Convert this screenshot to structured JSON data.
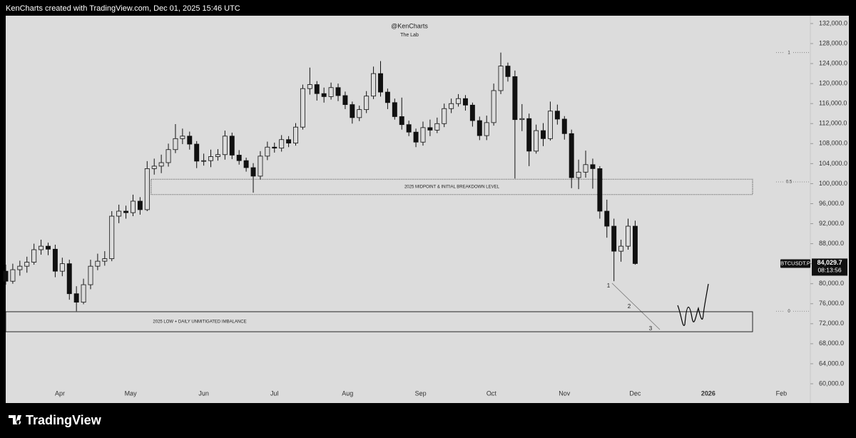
{
  "header": "KenCharts created with TradingView.com, Dec 01, 2025 15:46 UTC",
  "brand": "TradingView",
  "chart_data": {
    "type": "candlestick",
    "title": "@KenCharts",
    "subtitle": "The Lab",
    "up_color": "#111111",
    "down_color": "#111111",
    "xlim": [
      68,
      409
    ],
    "ylim": [
      58000,
      133570
    ],
    "xticks": [
      {
        "value": 91,
        "label": "Apr"
      },
      {
        "value": 121,
        "label": "May"
      },
      {
        "value": 152,
        "label": "Jun"
      },
      {
        "value": 182,
        "label": "Jul"
      },
      {
        "value": 213,
        "label": "Aug"
      },
      {
        "value": 244,
        "label": "Sep"
      },
      {
        "value": 274,
        "label": "Oct"
      },
      {
        "value": 305,
        "label": "Nov"
      },
      {
        "value": 335,
        "label": "Dec"
      },
      {
        "value": 366,
        "label": "2026"
      },
      {
        "value": 397,
        "label": "Feb"
      }
    ],
    "yticks": [
      {
        "value": 60000,
        "label": "60,000.0"
      },
      {
        "value": 64000,
        "label": "64,000.0"
      },
      {
        "value": 68000,
        "label": "68,000.0"
      },
      {
        "value": 72000,
        "label": "72,000.0"
      },
      {
        "value": 76000,
        "label": "76,000.0"
      },
      {
        "value": 80000,
        "label": "80,000.0"
      },
      {
        "value": 84000,
        "label": "84,000.0"
      },
      {
        "value": 88000,
        "label": "88,000.0"
      },
      {
        "value": 92000,
        "label": "92,000.0"
      },
      {
        "value": 96000,
        "label": "96,000.0"
      },
      {
        "value": 100000,
        "label": "100,000.0"
      },
      {
        "value": 104000,
        "label": "104,000.0"
      },
      {
        "value": 108000,
        "label": "108,000.0"
      },
      {
        "value": 112000,
        "label": "112,000.0"
      },
      {
        "value": 116000,
        "label": "116,000.0"
      },
      {
        "value": 120000,
        "label": "120,000.0"
      },
      {
        "value": 124000,
        "label": "124,000.0"
      },
      {
        "value": 128000,
        "label": "128,000.0"
      },
      {
        "value": 132000,
        "label": "132,000.0"
      }
    ],
    "x": [
      68,
      71,
      74,
      77,
      80,
      83,
      86,
      89,
      92,
      95,
      98,
      101,
      104,
      107,
      110,
      113,
      116,
      119,
      122,
      125,
      128,
      131,
      134,
      137,
      140,
      143,
      146,
      149,
      152,
      155,
      158,
      161,
      164,
      167,
      170,
      173,
      176,
      179,
      182,
      185,
      188,
      191,
      194,
      197,
      200,
      203,
      206,
      209,
      212,
      215,
      218,
      221,
      224,
      227,
      230,
      233,
      236,
      239,
      242,
      245,
      248,
      251,
      254,
      257,
      260,
      263,
      266,
      269,
      272,
      275,
      278,
      281,
      284,
      287,
      290,
      293,
      296,
      299,
      302,
      305,
      308,
      311,
      314,
      317,
      320,
      323,
      326,
      329,
      332,
      335
    ],
    "open": [
      82500,
      80500,
      82800,
      83500,
      84300,
      86800,
      87500,
      86900,
      82500,
      84000,
      78000,
      76300,
      79800,
      83500,
      84500,
      85000,
      93500,
      94500,
      94200,
      96500,
      94800,
      103000,
      103500,
      104200,
      106800,
      109000,
      109500,
      107900,
      104500,
      104600,
      105400,
      105800,
      109500,
      105700,
      104600,
      103200,
      101500,
      105500,
      107300,
      107100,
      108800,
      108100,
      111300,
      119000,
      119800,
      118000,
      117400,
      119200,
      117600,
      115800,
      113200,
      114800,
      117500,
      122000,
      118300,
      116200,
      113400,
      111800,
      110300,
      108300,
      111200,
      110700,
      112000,
      115000,
      116000,
      117000,
      115700,
      112600,
      109600,
      112200,
      118600,
      123500,
      121400,
      112800,
      113000,
      106500,
      110600,
      109000,
      114500,
      112900,
      110000,
      101200,
      102300,
      103800,
      103000,
      94500,
      91500,
      86500,
      87500,
      91500
    ],
    "high": [
      83800,
      84000,
      84600,
      85400,
      88000,
      88800,
      88200,
      87800,
      85200,
      84800,
      79500,
      81000,
      84800,
      86000,
      86500,
      94500,
      95800,
      95600,
      97800,
      97300,
      104500,
      105000,
      105800,
      108000,
      111900,
      111000,
      110400,
      108500,
      106000,
      106800,
      106900,
      110600,
      110200,
      106700,
      105200,
      104100,
      106500,
      108400,
      108200,
      109700,
      109500,
      112100,
      119800,
      123200,
      120500,
      119200,
      120200,
      120000,
      118400,
      116400,
      115600,
      118500,
      123400,
      124500,
      119000,
      117000,
      117200,
      112600,
      111000,
      112400,
      112800,
      113200,
      116000,
      117000,
      117900,
      117700,
      116200,
      113400,
      113600,
      120000,
      126200,
      124200,
      122600,
      115900,
      114000,
      111800,
      112100,
      116400,
      115800,
      113500,
      110800,
      104800,
      106600,
      105000,
      103500,
      96800,
      93000,
      88800,
      93000,
      92600
    ],
    "low": [
      79800,
      80000,
      81600,
      82200,
      83800,
      85800,
      85700,
      81300,
      81500,
      76800,
      74500,
      75900,
      78900,
      82700,
      83600,
      84500,
      92100,
      93000,
      93500,
      93800,
      94500,
      101800,
      102100,
      103400,
      106100,
      107900,
      106800,
      103100,
      103600,
      103300,
      104600,
      104800,
      104900,
      103800,
      102400,
      98200,
      100800,
      104700,
      106200,
      106400,
      107300,
      107600,
      110800,
      117800,
      116600,
      116200,
      116800,
      116500,
      114900,
      112000,
      112500,
      114100,
      116900,
      117400,
      114900,
      112800,
      110800,
      109500,
      107300,
      107600,
      109500,
      110100,
      111300,
      114100,
      115400,
      114600,
      111400,
      108700,
      108700,
      111600,
      117900,
      120400,
      101000,
      110500,
      103500,
      106000,
      107500,
      108600,
      111800,
      108800,
      99100,
      98900,
      101200,
      99000,
      93000,
      89200,
      80500,
      84400,
      86800,
      83800
    ],
    "close": [
      80500,
      82800,
      83500,
      84300,
      86800,
      87500,
      86900,
      82500,
      84000,
      78000,
      76300,
      79800,
      83500,
      84500,
      85000,
      93500,
      94500,
      94200,
      96500,
      94800,
      103000,
      103500,
      104200,
      106800,
      109000,
      109500,
      107900,
      104500,
      104600,
      105400,
      105800,
      109500,
      105700,
      104600,
      103200,
      101500,
      105500,
      107300,
      107100,
      108800,
      108100,
      111300,
      119000,
      119800,
      118000,
      117400,
      119200,
      117600,
      115800,
      113200,
      114800,
      117500,
      122000,
      118300,
      116200,
      113400,
      111800,
      110300,
      108300,
      111200,
      110700,
      112000,
      115000,
      116000,
      117000,
      115700,
      112600,
      109600,
      112200,
      118600,
      123500,
      121400,
      112800,
      113000,
      106500,
      110600,
      109000,
      114500,
      112900,
      110000,
      101200,
      102300,
      103800,
      103000,
      94500,
      91500,
      86500,
      87500,
      91500,
      84029.7
    ],
    "zones": [
      {
        "label": "2025 MIDPOINT & INITIAL BREAKDOWN LEVEL",
        "x": [
          129.7,
          384.8
        ],
        "y": [
          97800,
          100900
        ]
      },
      {
        "label": "2025 LOW + DAILY UNMITIGATED IMBALANCE",
        "x": [
          68,
          384.8
        ],
        "y": [
          70400,
          74400
        ]
      }
    ],
    "fib_levels": [
      {
        "value": 126200,
        "label": "1"
      },
      {
        "value": 100350,
        "label": "0.5"
      },
      {
        "value": 74500,
        "label": "0"
      }
    ],
    "wave_labels": [
      "1",
      "2",
      "3"
    ],
    "price_tag": {
      "symbol": "BTCUSDT.P",
      "value": 84029.7,
      "label": "84,029.7",
      "countdown": "08:13:56"
    }
  }
}
